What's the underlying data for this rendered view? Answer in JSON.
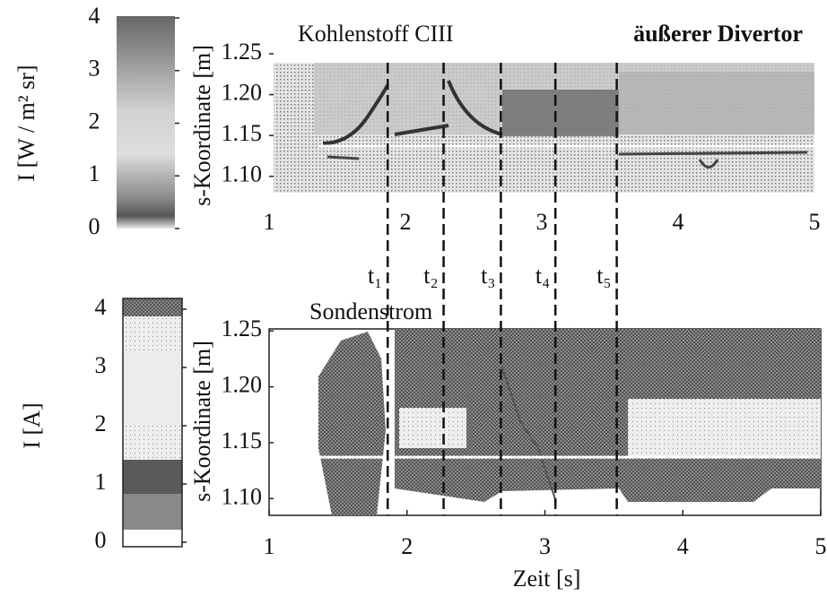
{
  "chart_data": [
    {
      "type": "heatmap",
      "title": "Kohlenstoff CIII",
      "subtitle": "äußerer Divertor",
      "y_label": "s-Koordinate [m]",
      "xlim": [
        1,
        5
      ],
      "xticks": [
        1,
        2,
        3,
        4,
        5
      ],
      "ylim": [
        1.08,
        1.25
      ],
      "yticks": [
        {
          "value": 1.1,
          "label": "1.10"
        },
        1.15,
        {
          "value": 1.2,
          "label": "1.20"
        },
        1.25
      ],
      "colorbar": {
        "label": "I [W / m² sr]",
        "lim": [
          0,
          4
        ],
        "ticks": [
          0,
          1,
          2,
          3,
          4
        ]
      },
      "hline": 1.137,
      "markers": [
        {
          "label": "t₁",
          "x": 1.87
        },
        {
          "label": "t₂",
          "x": 2.28
        },
        {
          "label": "t₃",
          "x": 2.7
        },
        {
          "label": "t₄",
          "x": 3.1
        },
        {
          "label": "t₅",
          "x": 3.55
        }
      ]
    },
    {
      "type": "contour",
      "title": "Sondenstrom",
      "x_label": "Zeit [s]",
      "y_label": "s-Koordinate [m]",
      "xlim": [
        1,
        5
      ],
      "xticks": [
        1,
        2,
        3,
        4,
        5
      ],
      "ylim": [
        1.085,
        1.255
      ],
      "yticks": [
        {
          "value": 1.1,
          "label": "1.10"
        },
        1.15,
        {
          "value": 1.2,
          "label": "1.20"
        },
        1.25
      ],
      "colorbar": {
        "label": "I [A]",
        "lim": [
          0,
          4
        ],
        "ticks": [
          0,
          1,
          2,
          3,
          4
        ]
      },
      "hline": 1.137
    }
  ]
}
